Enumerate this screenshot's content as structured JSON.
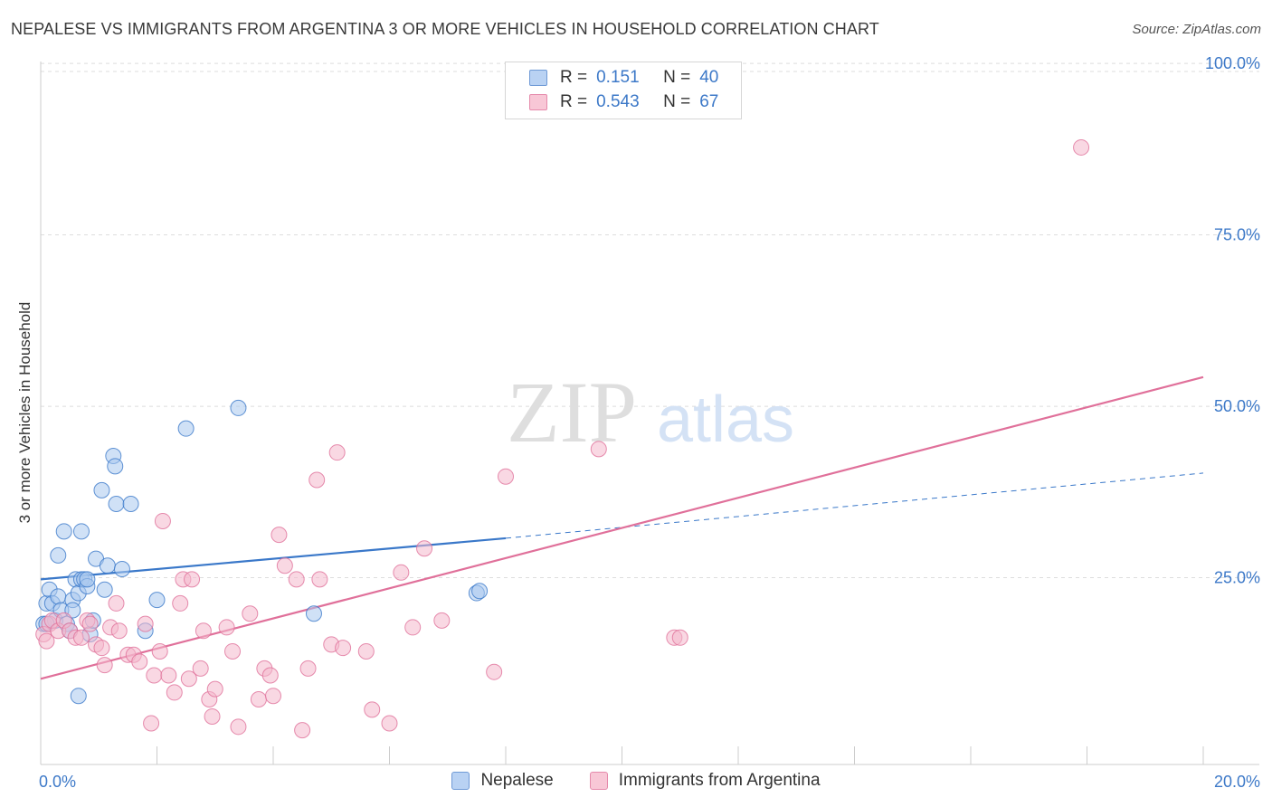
{
  "title": "NEPALESE VS IMMIGRANTS FROM ARGENTINA 3 OR MORE VEHICLES IN HOUSEHOLD CORRELATION CHART",
  "source": "Source: ZipAtlas.com",
  "watermark": {
    "zip": "ZIP",
    "atlas": "atlas"
  },
  "legend": {
    "r_label": "R =",
    "n_label": "N =",
    "series": [
      {
        "name": "Nepalese",
        "r": "0.151",
        "n": "40"
      },
      {
        "name": "Immigrants from Argentina",
        "r": "0.543",
        "n": "67"
      }
    ]
  },
  "chart_data": {
    "type": "scatter",
    "title": "NEPALESE VS IMMIGRANTS FROM ARGENTINA 3 OR MORE VEHICLES IN HOUSEHOLD CORRELATION CHART",
    "xlabel": "",
    "ylabel": "3 or more Vehicles in Household",
    "xlim": [
      0,
      20
    ],
    "ylim": [
      0,
      102
    ],
    "x_tick_labels": [
      {
        "value": 0,
        "label": "0.0%"
      },
      {
        "value": 20,
        "label": "20.0%"
      }
    ],
    "y_tick_labels": [
      {
        "value": 25,
        "label": "25.0%"
      },
      {
        "value": 50,
        "label": "50.0%"
      },
      {
        "value": 75,
        "label": "75.0%"
      },
      {
        "value": 100,
        "label": "100.0%"
      }
    ],
    "grid": true,
    "colors": {
      "nepalese": "#3a78c9",
      "nepalese_fill": "#a9c8ef",
      "argentina": "#e0709a",
      "argentina_fill": "#f4b8cc"
    },
    "series": [
      {
        "name": "Nepalese",
        "points": [
          [
            0.05,
            20.5
          ],
          [
            0.1,
            23.5
          ],
          [
            0.15,
            25.5
          ],
          [
            0.2,
            23.5
          ],
          [
            0.25,
            21.0
          ],
          [
            0.3,
            30.5
          ],
          [
            0.3,
            24.5
          ],
          [
            0.35,
            22.5
          ],
          [
            0.4,
            34.0
          ],
          [
            0.45,
            20.5
          ],
          [
            0.5,
            19.5
          ],
          [
            0.55,
            24.0
          ],
          [
            0.55,
            22.5
          ],
          [
            0.6,
            27.0
          ],
          [
            0.65,
            25.0
          ],
          [
            0.65,
            10.0
          ],
          [
            0.7,
            34.0
          ],
          [
            0.7,
            27.0
          ],
          [
            0.75,
            27.0
          ],
          [
            0.8,
            26.0
          ],
          [
            0.8,
            27.0
          ],
          [
            0.85,
            19.0
          ],
          [
            0.9,
            21.0
          ],
          [
            0.95,
            30.0
          ],
          [
            1.05,
            40.0
          ],
          [
            1.1,
            25.5
          ],
          [
            1.15,
            29.0
          ],
          [
            1.25,
            45.0
          ],
          [
            1.28,
            43.5
          ],
          [
            1.3,
            38.0
          ],
          [
            1.4,
            28.5
          ],
          [
            1.55,
            38.0
          ],
          [
            1.8,
            19.5
          ],
          [
            2.0,
            24.0
          ],
          [
            2.5,
            49.0
          ],
          [
            3.4,
            52.0
          ],
          [
            4.7,
            22.0
          ],
          [
            7.5,
            25.0
          ],
          [
            7.55,
            25.3
          ],
          [
            0.1,
            20.5
          ]
        ],
        "trend_solid": [
          [
            0,
            27.0
          ],
          [
            8.0,
            33.0
          ]
        ],
        "trend_dashed": [
          [
            8.0,
            33.0
          ],
          [
            20.0,
            42.5
          ]
        ]
      },
      {
        "name": "Immigrants from Argentina",
        "points": [
          [
            0.05,
            19.0
          ],
          [
            0.1,
            18.0
          ],
          [
            0.15,
            20.5
          ],
          [
            0.2,
            21.0
          ],
          [
            0.3,
            19.5
          ],
          [
            0.4,
            21.0
          ],
          [
            0.5,
            19.5
          ],
          [
            0.6,
            18.5
          ],
          [
            0.7,
            18.5
          ],
          [
            0.8,
            21.0
          ],
          [
            0.85,
            20.5
          ],
          [
            0.95,
            17.5
          ],
          [
            1.05,
            17.0
          ],
          [
            1.1,
            14.5
          ],
          [
            1.2,
            20.0
          ],
          [
            1.3,
            23.5
          ],
          [
            1.35,
            19.5
          ],
          [
            1.5,
            16.0
          ],
          [
            1.6,
            16.0
          ],
          [
            1.7,
            15.0
          ],
          [
            1.8,
            20.5
          ],
          [
            1.9,
            6.0
          ],
          [
            1.95,
            13.0
          ],
          [
            2.05,
            16.5
          ],
          [
            2.1,
            35.5
          ],
          [
            2.2,
            13.0
          ],
          [
            2.3,
            10.5
          ],
          [
            2.4,
            23.5
          ],
          [
            2.45,
            27.0
          ],
          [
            2.55,
            12.5
          ],
          [
            2.6,
            27.0
          ],
          [
            2.75,
            14.0
          ],
          [
            2.8,
            19.5
          ],
          [
            2.9,
            9.5
          ],
          [
            2.95,
            7.0
          ],
          [
            3.0,
            11.0
          ],
          [
            3.2,
            20.0
          ],
          [
            3.3,
            16.5
          ],
          [
            3.4,
            5.5
          ],
          [
            3.6,
            22.0
          ],
          [
            3.75,
            9.5
          ],
          [
            3.85,
            14.0
          ],
          [
            3.95,
            13.0
          ],
          [
            4.0,
            10.0
          ],
          [
            4.1,
            33.5
          ],
          [
            4.2,
            29.0
          ],
          [
            4.4,
            27.0
          ],
          [
            4.5,
            5.0
          ],
          [
            4.6,
            14.0
          ],
          [
            4.75,
            41.5
          ],
          [
            4.8,
            27.0
          ],
          [
            5.0,
            17.5
          ],
          [
            5.1,
            45.5
          ],
          [
            5.2,
            17.0
          ],
          [
            5.6,
            16.5
          ],
          [
            5.7,
            8.0
          ],
          [
            6.0,
            6.0
          ],
          [
            6.2,
            28.0
          ],
          [
            6.4,
            20.0
          ],
          [
            6.6,
            31.5
          ],
          [
            6.9,
            21.0
          ],
          [
            7.8,
            13.5
          ],
          [
            8.0,
            42.0
          ],
          [
            9.6,
            46.0
          ],
          [
            10.9,
            18.5
          ],
          [
            11.0,
            18.5
          ],
          [
            17.9,
            90.0
          ]
        ],
        "trend_solid": [
          [
            0,
            12.5
          ],
          [
            20.0,
            56.5
          ]
        ]
      }
    ]
  }
}
